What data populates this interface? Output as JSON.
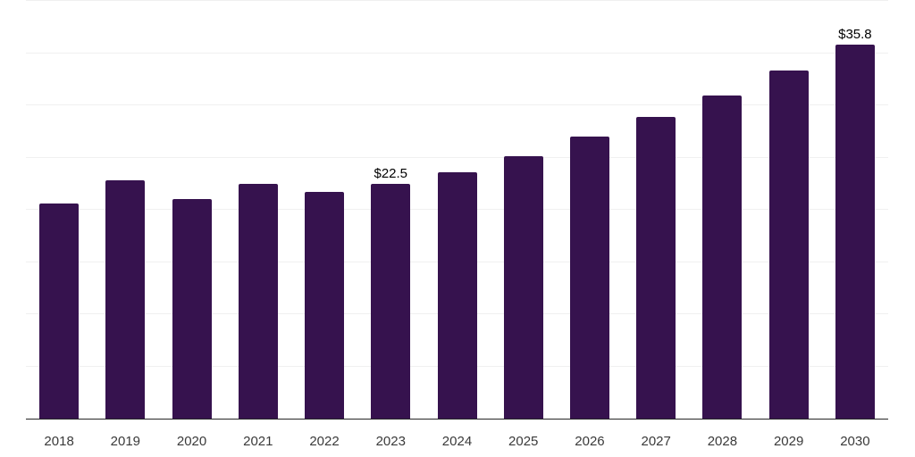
{
  "chart_data": {
    "type": "bar",
    "title": "",
    "xlabel": "",
    "ylabel": "",
    "categories": [
      "2018",
      "2019",
      "2020",
      "2021",
      "2022",
      "2023",
      "2024",
      "2025",
      "2026",
      "2027",
      "2028",
      "2029",
      "2030"
    ],
    "values": [
      20.6,
      22.8,
      21.0,
      22.5,
      21.7,
      22.5,
      23.6,
      25.1,
      27.0,
      28.9,
      30.9,
      33.3,
      35.8
    ],
    "data_labels": [
      {
        "category": "2023",
        "text": "$22.5"
      },
      {
        "category": "2030",
        "text": "$35.8"
      }
    ],
    "ylim": [
      0,
      40
    ],
    "ytick_step": 5,
    "y_axis_labels_visible": false,
    "grid": "horizontal",
    "legend": "none",
    "colors": {
      "bar": "#36124E",
      "axis_line": "#262626",
      "gridline": "#F0F0F0",
      "tick_label": "#3A3A3A",
      "data_label": "#000000",
      "background": "#FFFFFF"
    }
  }
}
